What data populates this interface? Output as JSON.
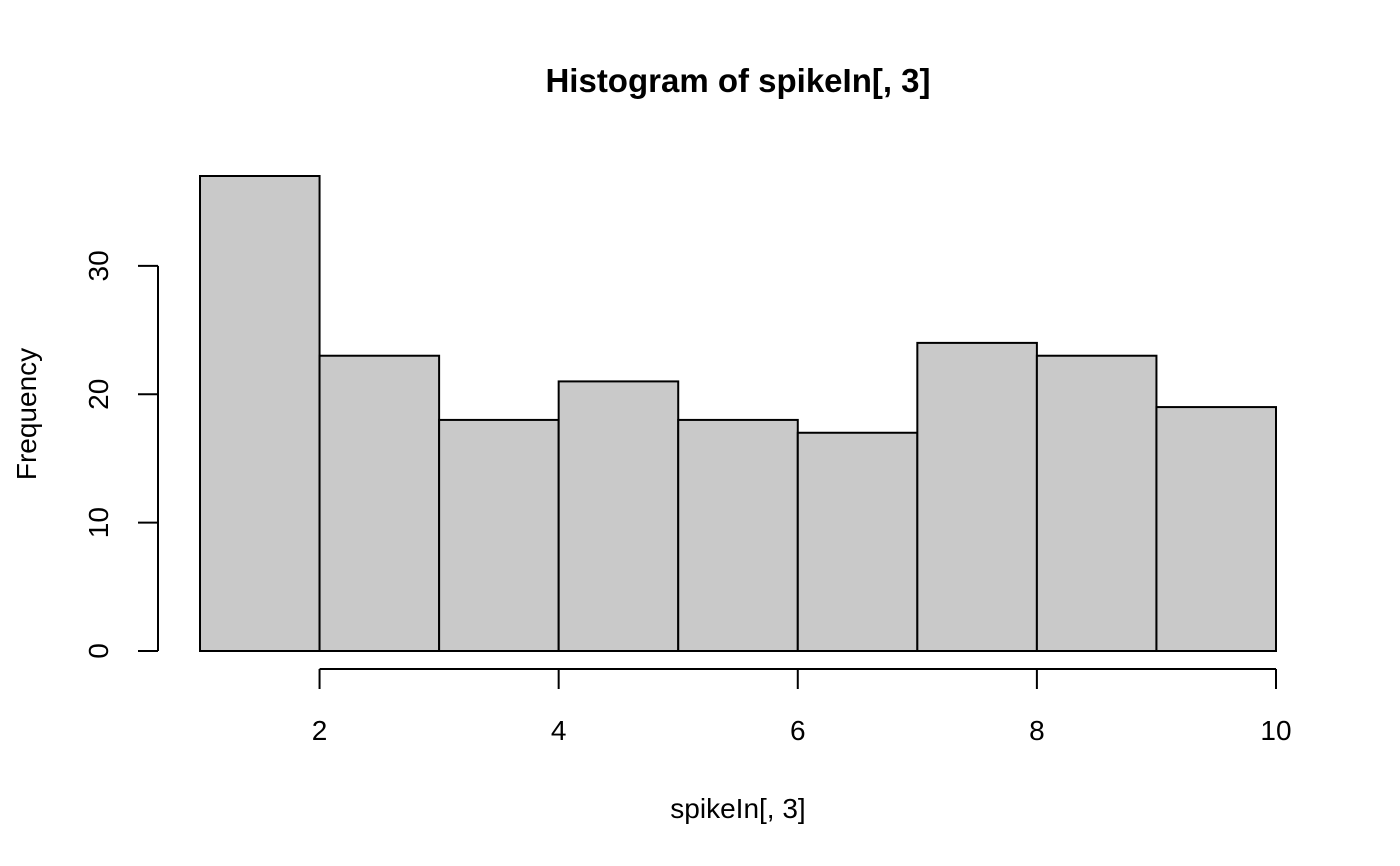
{
  "chart_data": {
    "type": "bar",
    "title": "Histogram of spikeIn[, 3]",
    "xlabel": "spikeIn[, 3]",
    "ylabel": "Frequency",
    "bin_edges": [
      1,
      2,
      3,
      4,
      5,
      6,
      7,
      8,
      9,
      10
    ],
    "values": [
      37,
      23,
      18,
      21,
      18,
      17,
      24,
      23,
      19
    ],
    "x_ticks": [
      2,
      4,
      6,
      8,
      10
    ],
    "y_ticks": [
      0,
      10,
      20,
      30
    ],
    "xlim": [
      1,
      10
    ],
    "ylim": [
      0,
      37
    ],
    "grid": false,
    "bar_fill": "#c9c9c9",
    "bar_stroke": "#000000"
  }
}
